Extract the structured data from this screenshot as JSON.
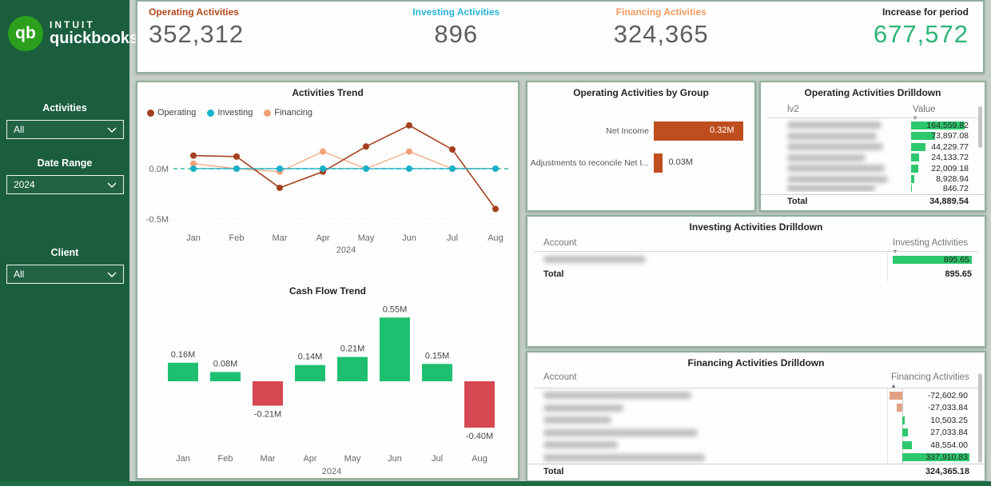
{
  "sidebar": {
    "brand": {
      "monogram": "qb",
      "intuit": "INTUIT",
      "quickbooks": "quickbooks",
      "logo_green": "#2ca01c"
    },
    "filters": [
      {
        "label": "Activities",
        "value": "All"
      },
      {
        "label": "Date Range",
        "value": "2024"
      },
      {
        "label": "Client",
        "value": "All"
      }
    ]
  },
  "kpis": [
    {
      "label": "Operating Activities",
      "value": "352,312",
      "label_color": "#b5491d",
      "value_color": "#5e5e5e"
    },
    {
      "label": "Investing Activities",
      "value": "896",
      "label_color": "#29b5d8",
      "value_color": "#5e5e5e"
    },
    {
      "label": "Financing Activities",
      "value": "324,365",
      "label_color": "#f59b61",
      "value_color": "#5e5e5e"
    },
    {
      "label": "Increase for period",
      "value": "677,572",
      "label_color": "#252423",
      "value_color": "#2cb577"
    }
  ],
  "chart_data": [
    {
      "id": "activities_trend",
      "type": "line",
      "title": "Activities Trend",
      "categories": [
        "Jan",
        "Feb",
        "Mar",
        "Apr",
        "May",
        "Jun",
        "Jul",
        "Aug"
      ],
      "x_axis_label": "2024",
      "ylim": [
        -0.55,
        0.5
      ],
      "yticks": [
        {
          "value": 0,
          "label": "0.0M"
        },
        {
          "value": -0.5,
          "label": "-0.5M"
        }
      ],
      "legend_position": "top-left",
      "zero_reference_line": {
        "style": "dashed",
        "color": "#33bba5"
      },
      "series": [
        {
          "name": "Operating",
          "color": "#a4401e",
          "values": [
            0.13,
            0.12,
            -0.19,
            -0.03,
            0.22,
            0.43,
            0.19,
            -0.4
          ]
        },
        {
          "name": "Investing",
          "color": "#16b1c9",
          "values": [
            0,
            0,
            0,
            0,
            0,
            0,
            0,
            0
          ]
        },
        {
          "name": "Financing",
          "color": "#f2a176",
          "values": [
            0.05,
            0.0,
            -0.03,
            0.17,
            0.0,
            0.17,
            0.0,
            0.0
          ]
        }
      ]
    },
    {
      "id": "cash_flow_trend",
      "type": "bar",
      "title": "Cash Flow Trend",
      "categories": [
        "Jan",
        "Feb",
        "Mar",
        "Apr",
        "May",
        "Jun",
        "Jul",
        "Aug"
      ],
      "x_axis_label": "2024",
      "values": [
        0.16,
        0.08,
        -0.21,
        0.14,
        0.21,
        0.55,
        0.15,
        -0.4
      ],
      "labels": [
        "0.16M",
        "0.08M",
        "-0.21M",
        "0.14M",
        "0.21M",
        "0.55M",
        "0.15M",
        "-0.40M"
      ],
      "positive_color": "#1fbf72",
      "negative_color": "#d54851",
      "ylim": [
        -0.45,
        0.6
      ]
    },
    {
      "id": "operating_by_group",
      "type": "bar",
      "orientation": "horizontal",
      "title": "Operating Activities by Group",
      "categories": [
        "Net Income",
        "Adjustments to reconcile Net I..."
      ],
      "values": [
        0.32,
        0.03
      ],
      "labels": [
        "0.32M",
        "0.03M"
      ],
      "bar_color": "#bf4e1e"
    }
  ],
  "operating_drilldown": {
    "title": "Operating Activities Drilldown",
    "columns": [
      "lv2",
      "Value"
    ],
    "sort": {
      "column": "Value",
      "direction": "desc"
    },
    "bar_color": "#2dc76d",
    "rows": [
      {
        "account_redacted": true,
        "value": "164,559.82",
        "num": 164559.82
      },
      {
        "account_redacted": true,
        "value": "73,897.08",
        "num": 73897.08
      },
      {
        "account_redacted": true,
        "value": "44,229.77",
        "num": 44229.77
      },
      {
        "account_redacted": true,
        "value": "24,133.72",
        "num": 24133.72
      },
      {
        "account_redacted": true,
        "value": "22,009.18",
        "num": 22009.18
      },
      {
        "account_redacted": true,
        "value": "8,928.94",
        "num": 8928.94
      },
      {
        "account_redacted": true,
        "value": "846.72",
        "num": 846.72,
        "clipped": true
      }
    ],
    "total_label": "Total",
    "total": "34,889.54"
  },
  "investing_drilldown": {
    "title": "Investing Activities Drilldown",
    "columns": [
      "Account",
      "Investing Activities"
    ],
    "sort": {
      "column": "Investing Activities",
      "direction": "desc"
    },
    "bar_color": "#2dc76d",
    "rows": [
      {
        "account_redacted": true,
        "value": "895.65",
        "num": 895.65
      }
    ],
    "total_label": "Total",
    "total": "895.65"
  },
  "financing_drilldown": {
    "title": "Financing Activities Drilldown",
    "columns": [
      "Account",
      "Financing Activities"
    ],
    "sort": {
      "column": "Financing Activities",
      "direction": "asc"
    },
    "positive_bar_color": "#2dc76d",
    "negative_bar_color": "#e3a183",
    "rows": [
      {
        "account_redacted": true,
        "value": "-72,602.90",
        "num": -72602.9
      },
      {
        "account_redacted": true,
        "value": "-27,033.84",
        "num": -27033.84
      },
      {
        "account_redacted": true,
        "value": "10,503.25",
        "num": 10503.25
      },
      {
        "account_redacted": true,
        "value": "27,033.84",
        "num": 27033.84
      },
      {
        "account_redacted": true,
        "value": "48,554.00",
        "num": 48554.0
      },
      {
        "account_redacted": true,
        "value": "337,910.83",
        "num": 337910.83
      }
    ],
    "total_label": "Total",
    "total": "324,365.18"
  }
}
